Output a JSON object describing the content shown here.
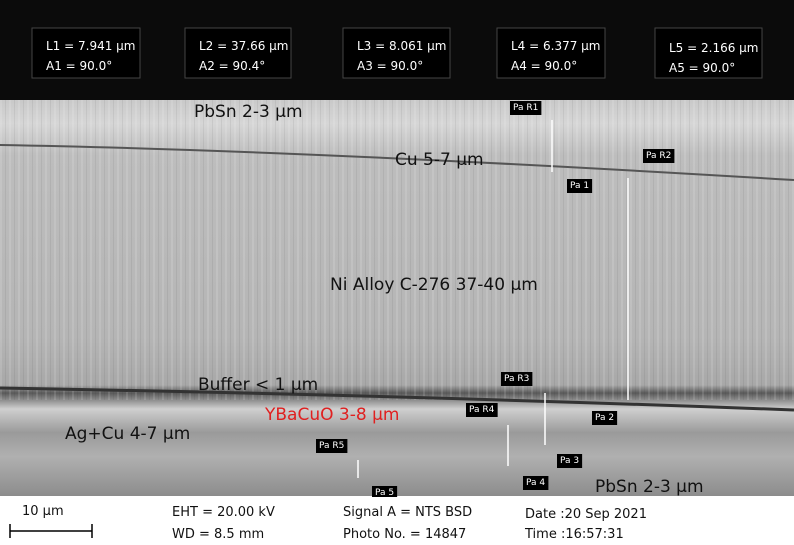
{
  "measurements": [
    {
      "length": "L1 = 7.941 µm",
      "angle": "A1 = 90.0°"
    },
    {
      "length": "L2 = 37.66 µm",
      "angle": "A2 = 90.4°"
    },
    {
      "length": "L3 = 8.061 µm",
      "angle": "A3 = 90.0°"
    },
    {
      "length": "L4 = 6.377 µm",
      "angle": "A4 = 90.0°"
    },
    {
      "length": "L5 = 2.166 µm",
      "angle": "A5 = 90.0°"
    }
  ],
  "layer_labels": [
    "PbSn 2-3 µm",
    "Cu 5-7 µm",
    "Ni Alloy C-276 37-40 µm",
    "Buffer < 1 µm",
    "YBaCuO 3-8 µm",
    "Ag+Cu 4-7 µm",
    "PbSn 2-3 µm"
  ],
  "markers": [
    "Pa R1",
    "Pa R2",
    "Pa 1",
    "Pa R3",
    "Pa R4",
    "Pa 2",
    "Pa R5",
    "Pa 3",
    "Pa 4",
    "Pa 5"
  ],
  "info_bar": {
    "scale": "10 µm",
    "eht": "EHT = 20.00 kV",
    "wd": "WD = 8.5 mm",
    "signal": "Signal A = NTS BSD",
    "photo": "Photo No. = 14847",
    "date": "Date :20 Sep 2021",
    "time": "Time :16:57:31"
  }
}
